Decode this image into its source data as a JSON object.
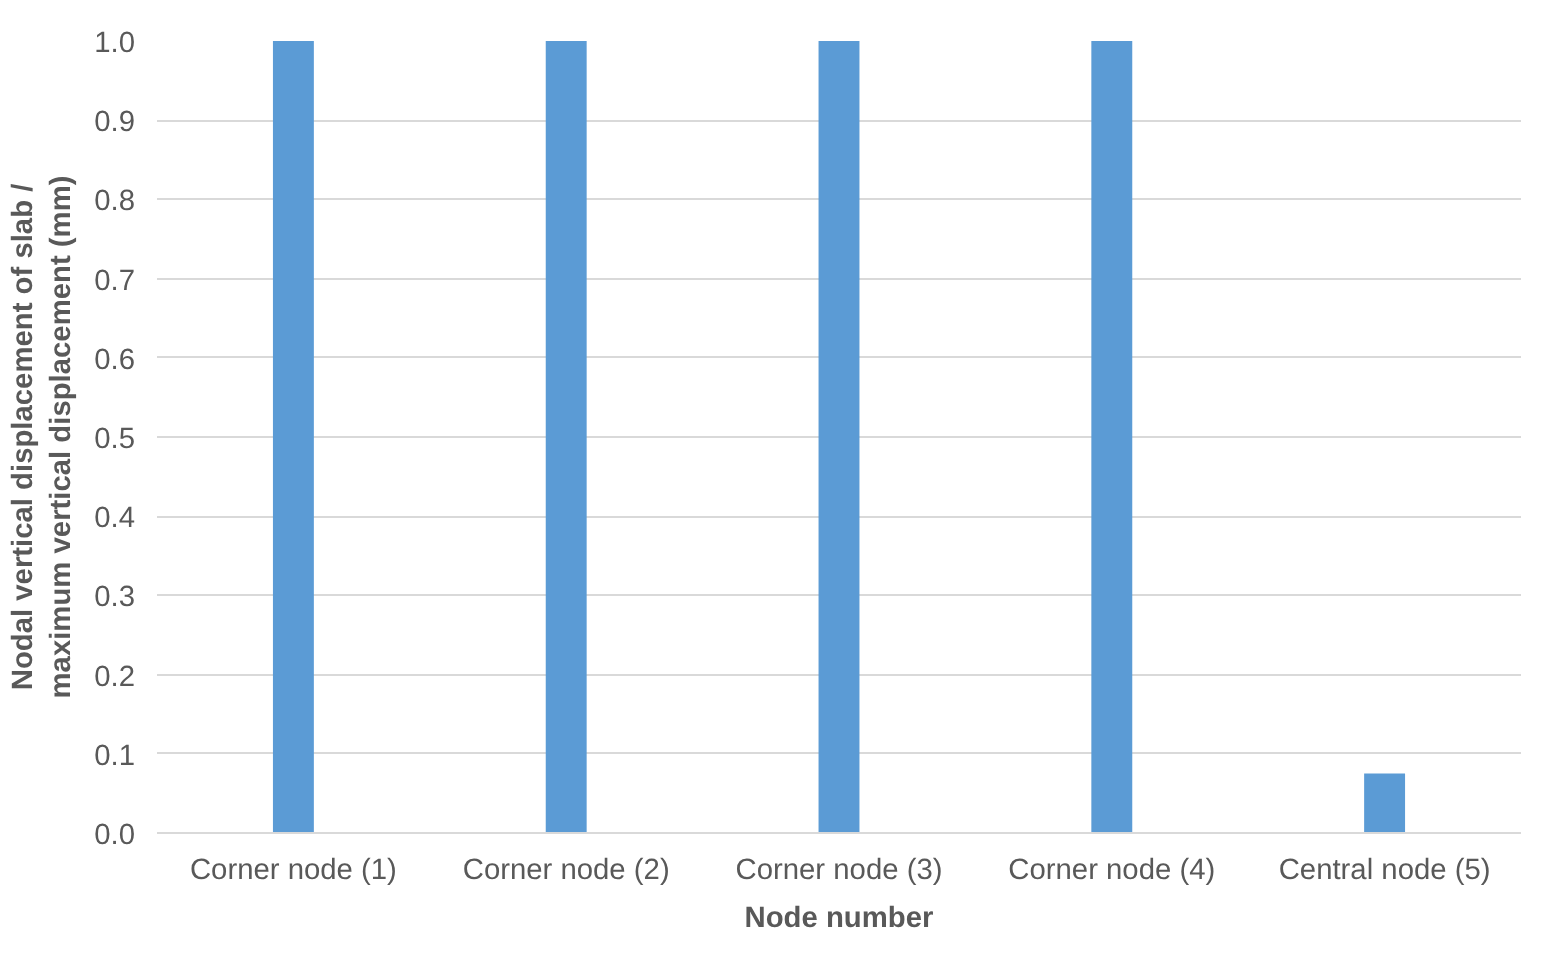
{
  "chart_data": {
    "type": "bar",
    "xlabel": "Node number",
    "ylabel": "Nodal vertical displacement of slab / maximum vertical displacement (mm)",
    "categories": [
      "Corner node (1)",
      "Corner node (2)",
      "Corner node (3)",
      "Corner node (4)",
      "Central node (5)"
    ],
    "values": [
      1.0,
      1.0,
      1.0,
      1.0,
      0.075
    ],
    "color": "#5b9bd5",
    "ylim": [
      0,
      1.0
    ],
    "yticks": [
      {
        "value": 0,
        "label": "0.0"
      },
      {
        "value": 0.1,
        "label": "0.1"
      },
      {
        "value": 0.2,
        "label": "0.2"
      },
      {
        "value": 0.3,
        "label": "0.3"
      },
      {
        "value": 0.4,
        "label": "0.4"
      },
      {
        "value": 0.5,
        "label": "0.5"
      },
      {
        "value": 0.6,
        "label": "0.6"
      },
      {
        "value": 0.7,
        "label": "0.7"
      },
      {
        "value": 0.8,
        "label": "0.8"
      },
      {
        "value": 0.9,
        "label": "0.9"
      },
      {
        "value": 1.0,
        "label": "1.0"
      }
    ],
    "grid": "y"
  }
}
